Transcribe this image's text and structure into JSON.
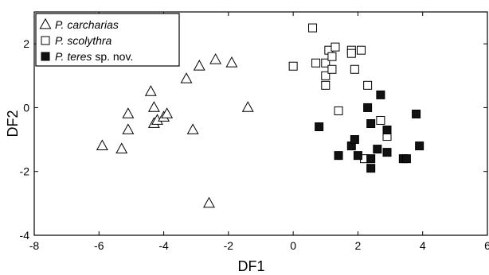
{
  "chart_data": {
    "type": "scatter",
    "xlabel": "DF1",
    "ylabel": "DF2",
    "xlim": [
      -8,
      6
    ],
    "ylim": [
      -4,
      3
    ],
    "xticks": [
      -8,
      -6,
      -4,
      -2,
      0,
      2,
      4,
      6
    ],
    "yticks": [
      -4,
      -2,
      0,
      2
    ],
    "legend_position": "top-left",
    "series": [
      {
        "name_italic": "P. carcharias",
        "name_suffix": "",
        "marker": "open-triangle",
        "points": [
          [
            -5.9,
            -1.2
          ],
          [
            -5.3,
            -1.3
          ],
          [
            -5.1,
            -0.2
          ],
          [
            -5.1,
            -0.7
          ],
          [
            -4.4,
            0.5
          ],
          [
            -4.3,
            0.0
          ],
          [
            -4.3,
            -0.5
          ],
          [
            -4.2,
            -0.4
          ],
          [
            -4.0,
            -0.3
          ],
          [
            -3.9,
            -0.2
          ],
          [
            -3.1,
            -0.7
          ],
          [
            -3.3,
            0.9
          ],
          [
            -2.9,
            1.3
          ],
          [
            -2.4,
            1.5
          ],
          [
            -1.9,
            1.4
          ],
          [
            -1.4,
            0.0
          ],
          [
            -2.6,
            -3.0
          ]
        ]
      },
      {
        "name_italic": "P. scolythra",
        "name_suffix": "",
        "marker": "open-square",
        "points": [
          [
            0.0,
            1.3
          ],
          [
            0.6,
            2.5
          ],
          [
            0.7,
            1.4
          ],
          [
            1.0,
            1.4
          ],
          [
            1.0,
            1.0
          ],
          [
            1.0,
            0.7
          ],
          [
            1.1,
            1.8
          ],
          [
            1.2,
            1.6
          ],
          [
            1.2,
            1.2
          ],
          [
            1.3,
            1.9
          ],
          [
            1.4,
            -0.1
          ],
          [
            1.8,
            1.8
          ],
          [
            1.8,
            1.7
          ],
          [
            1.9,
            1.2
          ],
          [
            2.1,
            1.8
          ],
          [
            2.3,
            0.7
          ],
          [
            2.7,
            -0.4
          ],
          [
            2.9,
            -0.9
          ],
          [
            2.2,
            -1.6
          ]
        ]
      },
      {
        "name_italic": "P. teres",
        "name_suffix": " sp. nov.",
        "marker": "filled-square",
        "points": [
          [
            0.8,
            -0.6
          ],
          [
            1.4,
            -1.5
          ],
          [
            1.8,
            -1.2
          ],
          [
            1.9,
            -1.0
          ],
          [
            2.0,
            -1.5
          ],
          [
            2.3,
            0.0
          ],
          [
            2.4,
            -0.5
          ],
          [
            2.4,
            -1.6
          ],
          [
            2.4,
            -1.9
          ],
          [
            2.6,
            -1.3
          ],
          [
            2.7,
            0.4
          ],
          [
            2.9,
            -0.7
          ],
          [
            2.9,
            -1.4
          ],
          [
            3.4,
            -1.6
          ],
          [
            3.5,
            -1.6
          ],
          [
            3.8,
            -0.2
          ],
          [
            3.9,
            -1.2
          ]
        ]
      }
    ]
  }
}
